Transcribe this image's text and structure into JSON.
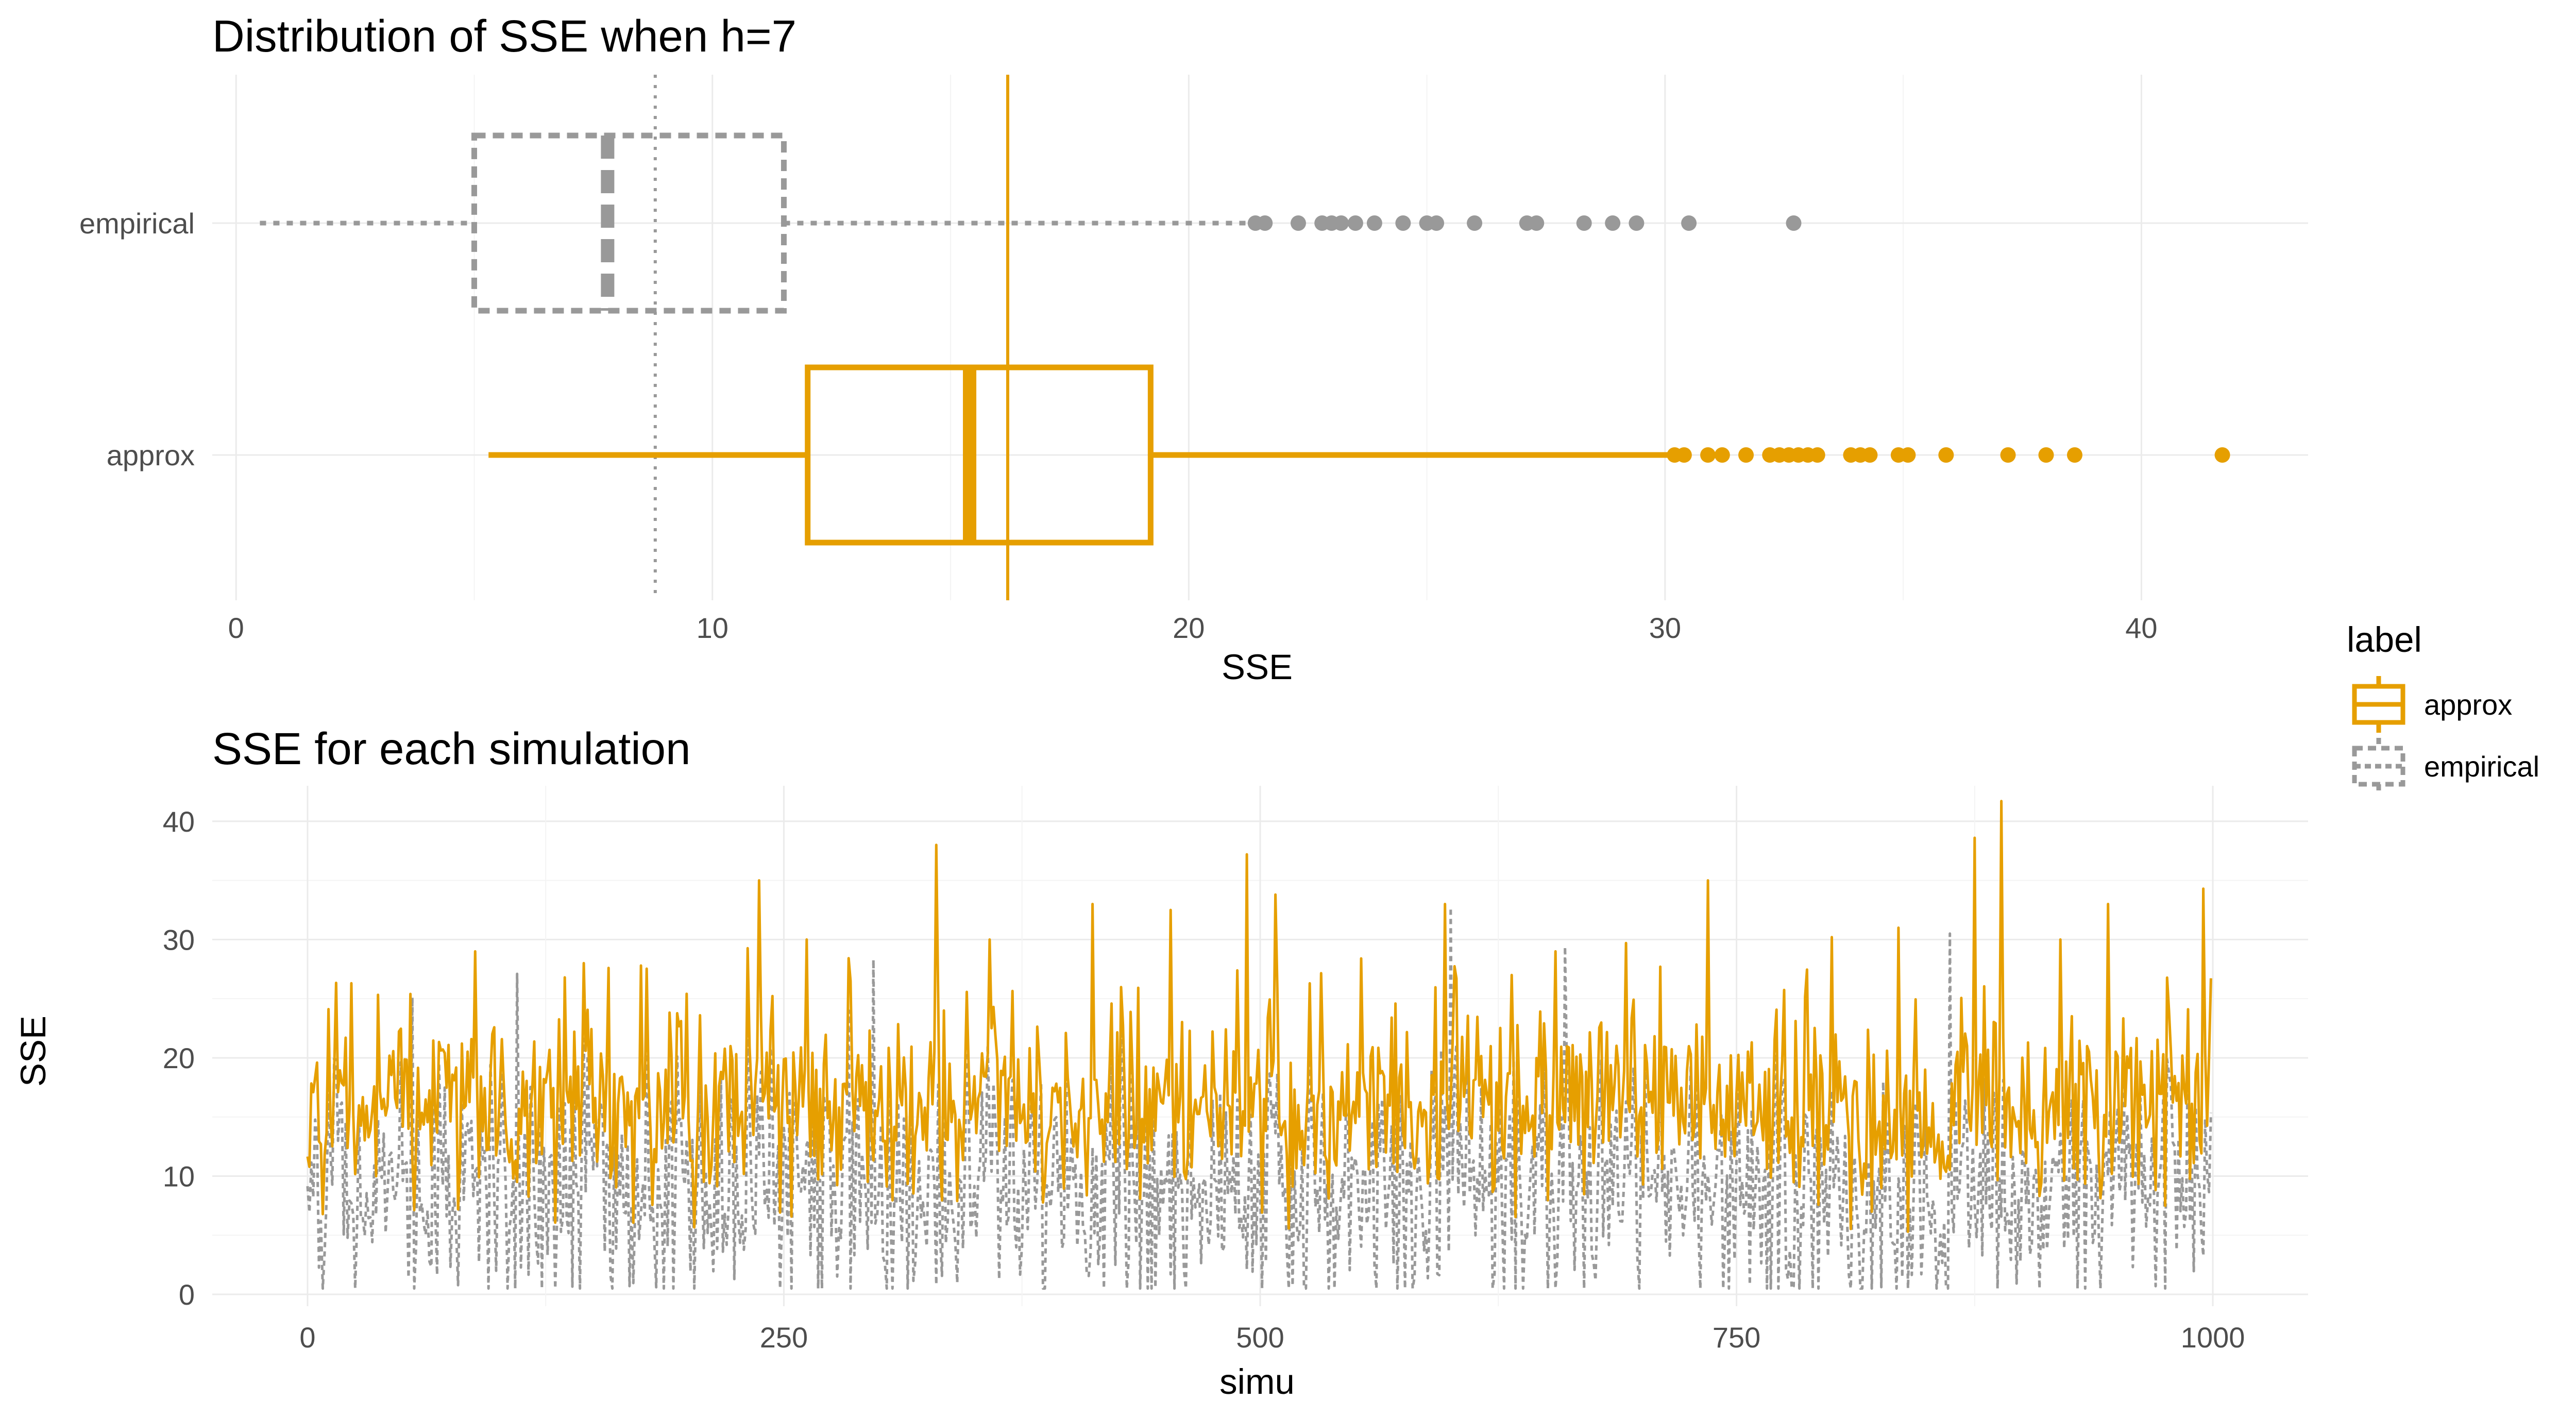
{
  "colors": {
    "approx": "#E69F00",
    "empirical": "#999999",
    "grid_major": "#EBEBEB",
    "grid_minor": "#F4F4F4"
  },
  "legend": {
    "title": "label",
    "items": [
      "approx",
      "empirical"
    ],
    "position": "right"
  },
  "chart_data": [
    {
      "type": "boxplot",
      "title": "Distribution of SSE when h=7",
      "xlabel": "SSE",
      "ylabel": "",
      "xlim": [
        -0.5,
        43.5
      ],
      "x_ticks": [
        0,
        10,
        20,
        30,
        40
      ],
      "grid": true,
      "categories": [
        "approx",
        "empirical"
      ],
      "series": [
        {
          "name": "approx",
          "whisker_low": 5.3,
          "q1": 12.0,
          "median": 15.4,
          "q3": 19.2,
          "whisker_high": 30.1,
          "outliers": [
            30.2,
            30.4,
            30.9,
            31.2,
            31.7,
            32.2,
            32.4,
            32.6,
            32.8,
            33.0,
            33.2,
            33.9,
            34.1,
            34.3,
            34.9,
            35.1,
            35.9,
            37.2,
            38.0,
            38.6,
            41.7
          ]
        },
        {
          "name": "empirical",
          "whisker_low": 0.5,
          "q1": 5.0,
          "median": 7.8,
          "q3": 11.5,
          "whisker_high": 21.2,
          "outliers": [
            21.4,
            21.6,
            22.3,
            22.8,
            23.0,
            23.2,
            23.5,
            23.9,
            24.5,
            25.0,
            25.2,
            26.0,
            27.1,
            27.3,
            28.3,
            28.9,
            29.4,
            30.5,
            32.7
          ]
        }
      ],
      "reference_lines": [
        {
          "series": "approx",
          "value": 16.2,
          "style": "solid"
        },
        {
          "series": "empirical",
          "value": 8.8,
          "style": "dotted"
        }
      ]
    },
    {
      "type": "line",
      "title": "SSE for each simulation",
      "xlabel": "simu",
      "ylabel": "SSE",
      "xlim": [
        -50,
        1050
      ],
      "ylim": [
        -1,
        43
      ],
      "x_ticks": [
        0,
        250,
        500,
        750,
        1000
      ],
      "y_ticks": [
        0,
        10,
        20,
        30,
        40
      ],
      "grid": true,
      "series": [
        {
          "name": "approx",
          "style": "solid",
          "n": 1000,
          "mean": 16.2,
          "min": 5.3,
          "max": 41.7,
          "spikes": [
            [
              23,
              26.3
            ],
            [
              54,
              25.4
            ],
            [
              88,
              29
            ],
            [
              135,
              26.8
            ],
            [
              145,
              28
            ],
            [
              158,
              27.6
            ],
            [
              175,
              27.8
            ],
            [
              237,
              35
            ],
            [
              262,
              30
            ],
            [
              285,
              26.5
            ],
            [
              330,
              38
            ],
            [
              358,
              30
            ],
            [
              412,
              33
            ],
            [
              453,
              32.5
            ],
            [
              493,
              37.2
            ],
            [
              508,
              33.8
            ],
            [
              553,
              28.4
            ],
            [
              597,
              33
            ],
            [
              632,
              27
            ],
            [
              655,
              29
            ],
            [
              692,
              29.7
            ],
            [
              735,
              35
            ],
            [
              800,
              30.2
            ],
            [
              835,
              31
            ],
            [
              875,
              38.6
            ],
            [
              889,
              41.7
            ],
            [
              920,
              30
            ],
            [
              945,
              33
            ],
            [
              995,
              34.3
            ]
          ]
        },
        {
          "name": "empirical",
          "style": "dashed",
          "n": 1000,
          "mean": 8.8,
          "min": 0.5,
          "max": 32.7,
          "spikes": [
            [
              55,
              25.1
            ],
            [
              110,
              27.1
            ],
            [
              297,
              28.3
            ],
            [
              600,
              32.7
            ],
            [
              660,
              29.4
            ],
            [
              862,
              30.5
            ]
          ]
        }
      ]
    }
  ]
}
